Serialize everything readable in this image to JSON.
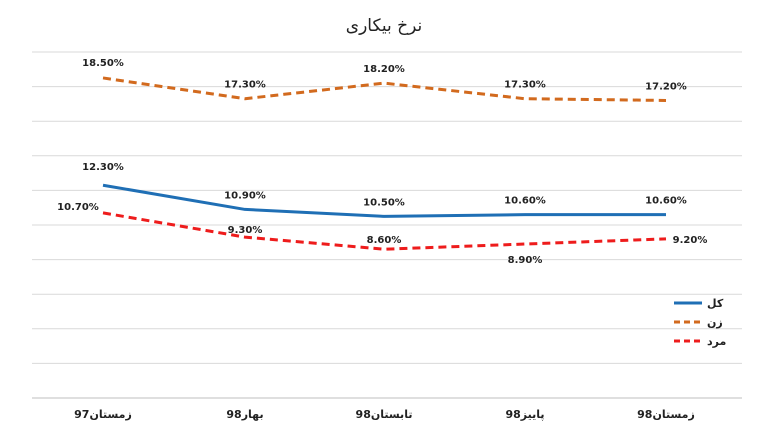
{
  "chart_data": {
    "type": "line",
    "title": "نرخ بیکاری",
    "categories": [
      "زمستان97",
      "بهار98",
      "تابستان98",
      "پاییز98",
      "زمستان98"
    ],
    "series": [
      {
        "name": "کل",
        "values": [
          12.3,
          10.9,
          10.5,
          10.6,
          10.6
        ],
        "labels": [
          "12.30%",
          "10.90%",
          "10.50%",
          "10.60%",
          "10.60%"
        ],
        "color": "#1f6fb5",
        "dash": "solid"
      },
      {
        "name": "زن",
        "values": [
          18.5,
          17.3,
          18.2,
          17.3,
          17.2
        ],
        "labels": [
          "18.50%",
          "17.30%",
          "18.20%",
          "17.30%",
          "17.20%"
        ],
        "color": "#d26a1e",
        "dash": "dashed"
      },
      {
        "name": "مرد",
        "values": [
          10.7,
          9.3,
          8.6,
          8.9,
          9.2
        ],
        "labels": [
          "10.70%",
          "9.30%",
          "8.60%",
          "8.90%",
          "9.20%"
        ],
        "color": "#ee1c1c",
        "dash": "dashed"
      }
    ],
    "ylim": [
      0,
      20
    ],
    "grid": true,
    "legend": "right"
  }
}
